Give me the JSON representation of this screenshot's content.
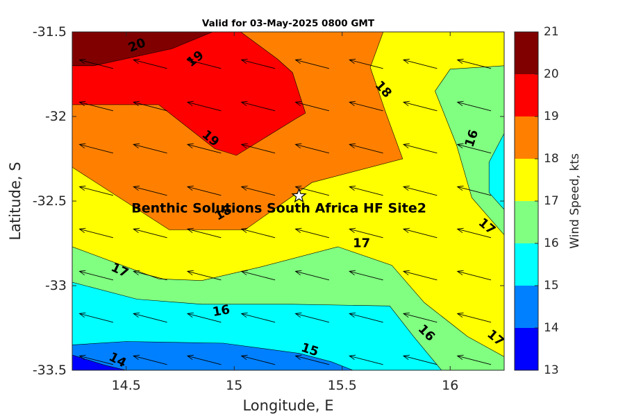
{
  "chart_data": {
    "type": "contourf",
    "title": "Valid for 03-May-2025 0800 GMT",
    "xlabel": "Longitude, E",
    "ylabel": "Latitude, S",
    "xlim": [
      14.25,
      16.25
    ],
    "ylim": [
      -33.5,
      -31.5
    ],
    "xticks": [
      {
        "value": 14.5,
        "label": "14.5"
      },
      {
        "value": 15,
        "label": "15"
      },
      {
        "value": 15.5,
        "label": "15.5"
      },
      {
        "value": 16,
        "label": "16"
      }
    ],
    "yticks": [
      {
        "value": -31.5,
        "label": "-31.5"
      },
      {
        "value": -32,
        "label": "-32"
      },
      {
        "value": -32.5,
        "label": "-32.5"
      },
      {
        "value": -33,
        "label": "-33"
      },
      {
        "value": -33.5,
        "label": "-33.5"
      }
    ],
    "colorbar": {
      "label": "Wind Speed, kts",
      "levels": [
        13,
        14,
        15,
        16,
        17,
        18,
        19,
        20,
        21
      ],
      "tick_labels": [
        "13",
        "14",
        "15",
        "16",
        "17",
        "18",
        "19",
        "20",
        "21"
      ],
      "colors": [
        "#0000ff",
        "#0080ff",
        "#00ffff",
        "#80ff80",
        "#ffff00",
        "#ff8000",
        "#ff0000",
        "#800000"
      ]
    },
    "filled_regions": [
      {
        "band": "17-18",
        "color": "#ffff00",
        "points": [
          [
            14.25,
            -31.5
          ],
          [
            16.25,
            -31.5
          ],
          [
            16.25,
            -33.5
          ],
          [
            14.25,
            -33.5
          ]
        ]
      },
      {
        "band": "18-19",
        "color": "#ff8000",
        "points": [
          [
            14.25,
            -31.5
          ],
          [
            15.69,
            -31.5
          ],
          [
            15.63,
            -31.71
          ],
          [
            15.7,
            -31.97
          ],
          [
            15.78,
            -32.25
          ],
          [
            15.36,
            -32.39
          ],
          [
            15.05,
            -32.67
          ],
          [
            14.7,
            -32.67
          ],
          [
            14.25,
            -32.3
          ]
        ]
      },
      {
        "band": "19-20",
        "color": "#ff0000",
        "points": [
          [
            14.25,
            -31.5
          ],
          [
            15.03,
            -31.5
          ],
          [
            15.2,
            -31.66
          ],
          [
            15.27,
            -31.74
          ],
          [
            15.33,
            -31.98
          ],
          [
            15.29,
            -32.01
          ],
          [
            15.01,
            -32.23
          ],
          [
            14.91,
            -32.19
          ],
          [
            14.65,
            -31.93
          ],
          [
            14.25,
            -31.93
          ]
        ]
      },
      {
        "band": "20-21",
        "color": "#800000",
        "points": [
          [
            14.25,
            -31.5
          ],
          [
            14.9,
            -31.5
          ],
          [
            14.71,
            -31.6
          ],
          [
            14.35,
            -31.7
          ],
          [
            14.25,
            -31.7
          ]
        ]
      },
      {
        "band": "16-17",
        "color": "#80ff80",
        "points": [
          [
            14.25,
            -32.77
          ],
          [
            14.65,
            -32.96
          ],
          [
            14.85,
            -32.97
          ],
          [
            15.12,
            -32.89
          ],
          [
            15.48,
            -32.77
          ],
          [
            15.73,
            -32.88
          ],
          [
            15.88,
            -33.1
          ],
          [
            16.08,
            -33.3
          ],
          [
            16.25,
            -33.42
          ],
          [
            16.25,
            -33.5
          ],
          [
            14.25,
            -33.5
          ]
        ]
      },
      {
        "band": "16-17",
        "color": "#80ff80",
        "points": [
          [
            16.25,
            -31.7
          ],
          [
            16.0,
            -31.72
          ],
          [
            15.93,
            -31.85
          ],
          [
            16.03,
            -32.17
          ],
          [
            16.1,
            -32.48
          ],
          [
            16.25,
            -32.7
          ]
        ]
      },
      {
        "band": "15-16",
        "color": "#00ffff",
        "points": [
          [
            14.25,
            -32.98
          ],
          [
            14.55,
            -33.08
          ],
          [
            14.85,
            -33.11
          ],
          [
            15.27,
            -33.11
          ],
          [
            15.72,
            -33.12
          ],
          [
            15.83,
            -33.3
          ],
          [
            15.96,
            -33.5
          ],
          [
            14.25,
            -33.5
          ]
        ]
      },
      {
        "band": "15-16",
        "color": "#00ffff",
        "points": [
          [
            16.25,
            -32.1
          ],
          [
            16.18,
            -32.27
          ],
          [
            16.18,
            -32.45
          ],
          [
            16.25,
            -32.55
          ]
        ]
      },
      {
        "band": "14-15",
        "color": "#0080ff",
        "points": [
          [
            14.25,
            -33.35
          ],
          [
            14.5,
            -33.33
          ],
          [
            14.95,
            -33.34
          ],
          [
            15.3,
            -33.4
          ],
          [
            15.45,
            -33.45
          ],
          [
            15.55,
            -33.5
          ],
          [
            14.25,
            -33.5
          ]
        ]
      },
      {
        "band": "13-14",
        "color": "#0000ff",
        "points": [
          [
            14.25,
            -33.41
          ],
          [
            14.4,
            -33.47
          ],
          [
            14.5,
            -33.5
          ],
          [
            14.25,
            -33.5
          ]
        ]
      }
    ],
    "contour_labels": [
      {
        "text": "20",
        "lon": 14.55,
        "lat": -31.58,
        "angle": -22
      },
      {
        "text": "19",
        "lon": 14.82,
        "lat": -31.66,
        "angle": -38
      },
      {
        "text": "18",
        "lon": 15.69,
        "lat": -31.84,
        "angle": 48
      },
      {
        "text": "19",
        "lon": 14.89,
        "lat": -32.13,
        "angle": 40
      },
      {
        "text": "16",
        "lon": 16.1,
        "lat": -32.13,
        "angle": -72
      },
      {
        "text": "18",
        "lon": 14.95,
        "lat": -32.57,
        "angle": -30
      },
      {
        "text": "17",
        "lon": 16.17,
        "lat": -32.65,
        "angle": 40
      },
      {
        "text": "17",
        "lon": 15.59,
        "lat": -32.75,
        "angle": 0
      },
      {
        "text": "17",
        "lon": 14.47,
        "lat": -32.91,
        "angle": 25
      },
      {
        "text": "16",
        "lon": 14.94,
        "lat": -33.15,
        "angle": -10
      },
      {
        "text": "16",
        "lon": 15.89,
        "lat": -33.28,
        "angle": 45
      },
      {
        "text": "17",
        "lon": 16.21,
        "lat": -33.31,
        "angle": 40
      },
      {
        "text": "15",
        "lon": 15.35,
        "lat": -33.38,
        "angle": 18
      },
      {
        "text": "14",
        "lon": 14.46,
        "lat": -33.44,
        "angle": 28
      }
    ],
    "wind_vectors": {
      "lons": [
        14.375,
        14.625,
        14.875,
        15.125,
        15.375,
        15.625,
        15.875,
        16.125
      ],
      "lats": [
        -31.7,
        -31.95,
        -32.2,
        -32.45,
        -32.7,
        -32.95,
        -33.2,
        -33.45
      ],
      "direction_note": "arrows point to the west-northwest",
      "u_kts": -17.5,
      "v_kts": 4.5
    },
    "site": {
      "name": "Benthic Solutions South Africa HF Site2",
      "lon": 15.3,
      "lat": -32.47,
      "marker": "star"
    }
  }
}
